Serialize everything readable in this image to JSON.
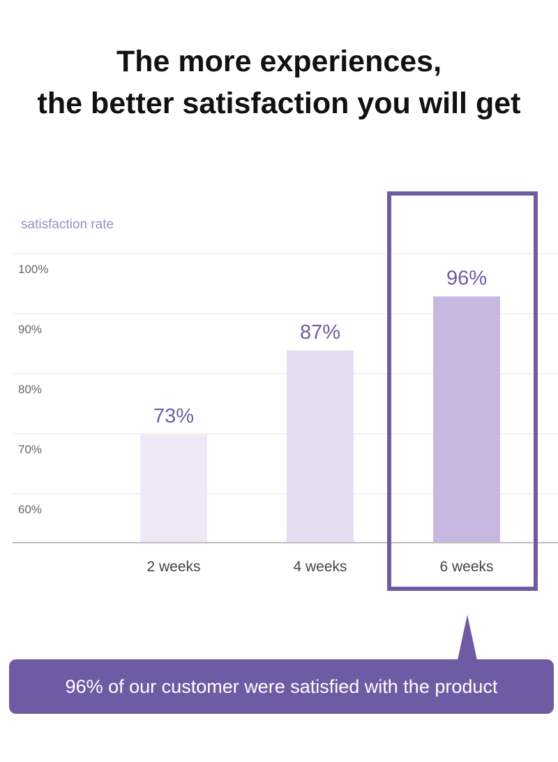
{
  "header": {
    "line1": "The more experiences,",
    "line2": "the better satisfaction you will get"
  },
  "chart_data": {
    "type": "bar",
    "title": "",
    "ylabel": "satisfaction rate",
    "xlabel": "",
    "categories": [
      "2 weeks",
      "4 weeks",
      "6 weeks"
    ],
    "values": [
      73,
      87,
      96
    ],
    "value_labels": [
      "73%",
      "87%",
      "96%"
    ],
    "ylim": [
      55,
      105
    ],
    "yticks": [
      100,
      90,
      80,
      70,
      60
    ],
    "ytick_labels": [
      "100%",
      "90%",
      "80%",
      "70%",
      "60%"
    ],
    "grid": true,
    "highlighted_category": "6 weeks",
    "colors": {
      "bar_light": "#efe9f7",
      "bar_medium": "#e6ddf2",
      "bar_highlight": "#c8b8e1",
      "highlight_frame": "#6f5ba4",
      "value_label": "#6f5ba4",
      "ylabel": "#9a8cc4",
      "grid": "#e4e4e4",
      "axis": "#bdbdbd",
      "tick_text": "#666666",
      "category_text": "#444444"
    }
  },
  "callout": {
    "text": "96% of our customer were satisfied with the product"
  }
}
